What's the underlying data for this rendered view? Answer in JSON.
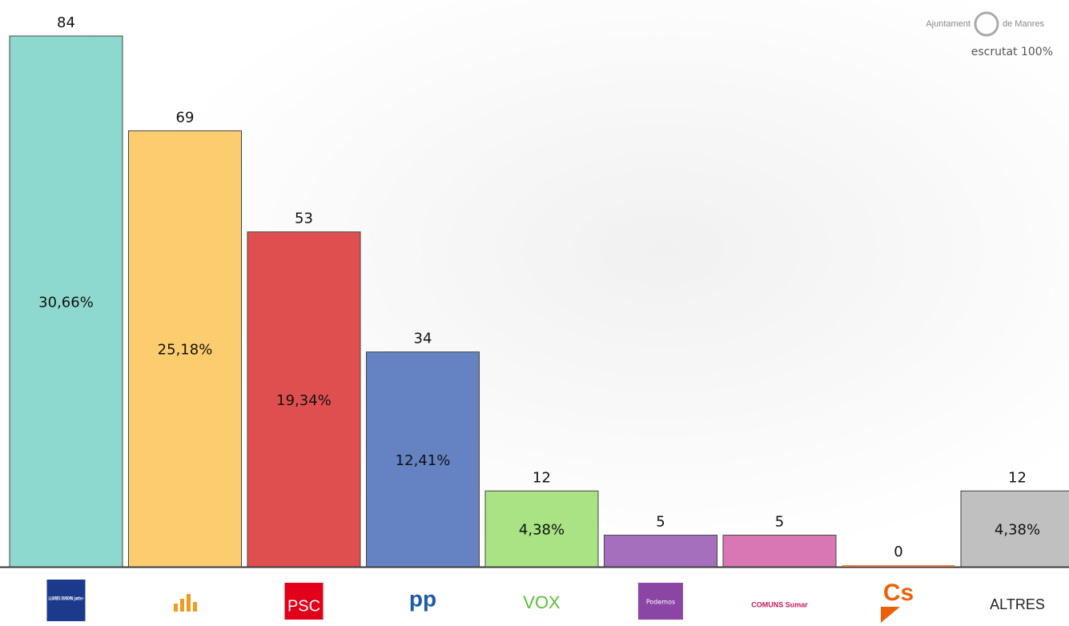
{
  "chart_data": {
    "type": "bar",
    "header": {
      "org_left": "Ajuntament",
      "org_right": "de Manres",
      "status": "escrutat 100%"
    },
    "categories": [
      "LLIURES EUROPA junts+",
      null,
      "PSC",
      "pp",
      "VOX",
      "Podemos",
      "COMUNS Sumar",
      "Cs",
      "ALTRES"
    ],
    "values": [
      84,
      69,
      53,
      34,
      12,
      5,
      5,
      0,
      12
    ],
    "percentage_labels": [
      "30,66%",
      "25,18%",
      "19,34%",
      "12,41%",
      "4,38%",
      null,
      null,
      null,
      "4,38%"
    ],
    "colors": [
      "#8dd9cf",
      "#fccd6e",
      "#e04f50",
      "#6583c3",
      "#a9e383",
      "#a66fbd",
      "#d976b4",
      "#f07b4a",
      "#c0c0c0"
    ]
  }
}
